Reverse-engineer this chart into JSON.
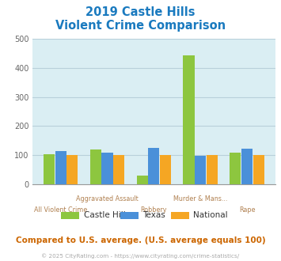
{
  "title_line1": "2019 Castle Hills",
  "title_line2": "Violent Crime Comparison",
  "categories": [
    "All Violent Crime",
    "Aggravated Assault",
    "Robbery",
    "Murder & Mans...",
    "Rape"
  ],
  "castle_hills": [
    103,
    118,
    28,
    444,
    107
  ],
  "texas": [
    113,
    107,
    124,
    98,
    122
  ],
  "national": [
    100,
    100,
    100,
    100,
    100
  ],
  "color_castle_hills": "#8dc63f",
  "color_texas": "#4a90d9",
  "color_national": "#f5a623",
  "ylim": [
    0,
    500
  ],
  "yticks": [
    0,
    100,
    200,
    300,
    400,
    500
  ],
  "bg_color": "#ffffff",
  "plot_bg": "#daeef3",
  "grid_color": "#b8d0da",
  "title_color": "#1a7abf",
  "xlabel_color": "#b08050",
  "footer_text": "Compared to U.S. average. (U.S. average equals 100)",
  "copyright_text": "© 2025 CityRating.com - https://www.cityrating.com/crime-statistics/",
  "footer_color": "#cc6600",
  "copyright_color": "#aaaaaa",
  "legend_labels": [
    "Castle Hills",
    "Texas",
    "National"
  ]
}
